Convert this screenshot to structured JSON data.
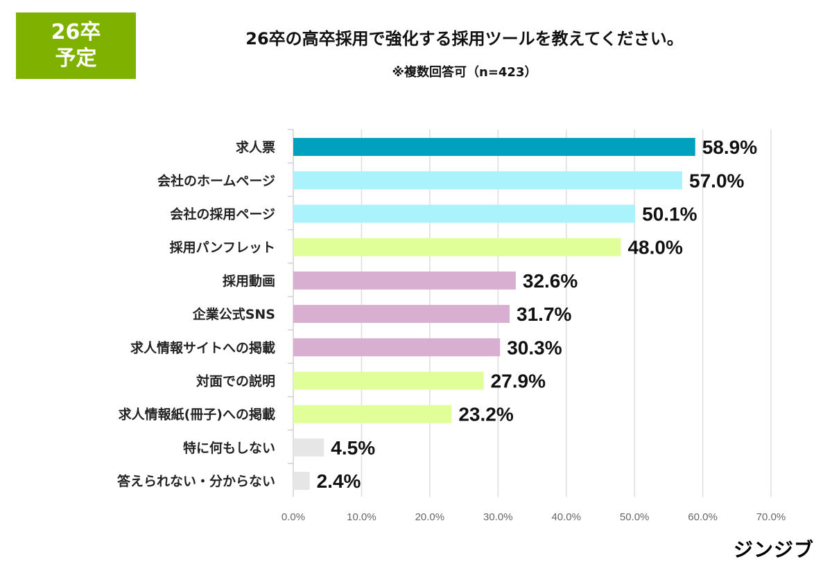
{
  "badge": {
    "line1": "26卒",
    "line2": "予定",
    "color": "#7fb200"
  },
  "logo": "ジンジブ",
  "chart_data": {
    "type": "bar",
    "orientation": "horizontal",
    "title": "26卒の高卒採用で強化する採用ツールを教えてください。",
    "subtitle": "※複数回答可（n=423）",
    "categories": [
      "求人票",
      "会社のホームページ",
      "会社の採用ページ",
      "採用パンフレット",
      "採用動画",
      "企業公式SNS",
      "求人情報サイトへの掲載",
      "対面での説明",
      "求人情報紙(冊子)への掲載",
      "特に何もしない",
      "答えられない・分からない"
    ],
    "values": [
      58.9,
      57.0,
      50.1,
      48.0,
      32.6,
      31.7,
      30.3,
      27.9,
      23.2,
      4.5,
      2.4
    ],
    "value_labels": [
      "58.9%",
      "57.0%",
      "50.1%",
      "48.0%",
      "32.6%",
      "31.7%",
      "30.3%",
      "27.9%",
      "23.2%",
      "4.5%",
      "2.4%"
    ],
    "colors": [
      "#00a0bf",
      "#aaf2fc",
      "#aaf2fc",
      "#e1ff99",
      "#d8aed1",
      "#d8aed1",
      "#d8aed1",
      "#e1ff99",
      "#e1ff99",
      "#e6e6e6",
      "#e6e6e6"
    ],
    "xlim": [
      0,
      70
    ],
    "xticks": [
      "0.0%",
      "10.0%",
      "20.0%",
      "30.0%",
      "40.0%",
      "50.0%",
      "60.0%",
      "70.0%"
    ],
    "grid": true
  }
}
